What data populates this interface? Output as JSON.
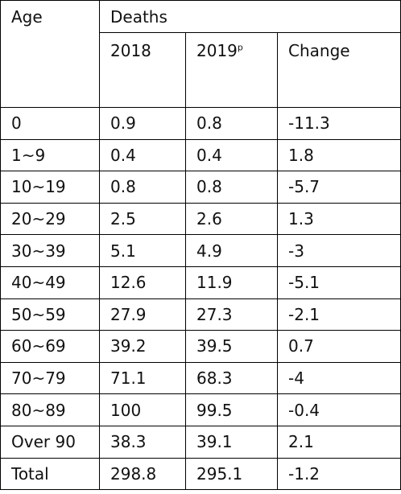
{
  "chart_data": {
    "type": "table",
    "headers": {
      "age": "Age",
      "deaths": "Deaths",
      "y2018": "2018",
      "y2019": "2019",
      "y2019_sup": "p",
      "change": "Change"
    },
    "rows": [
      {
        "age": "0",
        "v2018": "0.9",
        "v2019": "0.8",
        "change": "-11.3"
      },
      {
        "age": "1~9",
        "v2018": "0.4",
        "v2019": "0.4",
        "change": "1.8"
      },
      {
        "age": "10~19",
        "v2018": "0.8",
        "v2019": "0.8",
        "change": "-5.7"
      },
      {
        "age": "20~29",
        "v2018": "2.5",
        "v2019": "2.6",
        "change": "1.3"
      },
      {
        "age": "30~39",
        "v2018": "5.1",
        "v2019": "4.9",
        "change": "-3"
      },
      {
        "age": "40~49",
        "v2018": "12.6",
        "v2019": "11.9",
        "change": "-5.1"
      },
      {
        "age": "50~59",
        "v2018": "27.9",
        "v2019": "27.3",
        "change": "-2.1"
      },
      {
        "age": "60~69",
        "v2018": "39.2",
        "v2019": "39.5",
        "change": "0.7"
      },
      {
        "age": "70~79",
        "v2018": "71.1",
        "v2019": "68.3",
        "change": "-4"
      },
      {
        "age": "80~89",
        "v2018": "100",
        "v2019": "99.5",
        "change": "-0.4"
      },
      {
        "age": "Over 90",
        "v2018": "38.3",
        "v2019": "39.1",
        "change": "2.1"
      },
      {
        "age": "Total",
        "v2018": "298.8",
        "v2019": "295.1",
        "change": "-1.2"
      }
    ]
  }
}
